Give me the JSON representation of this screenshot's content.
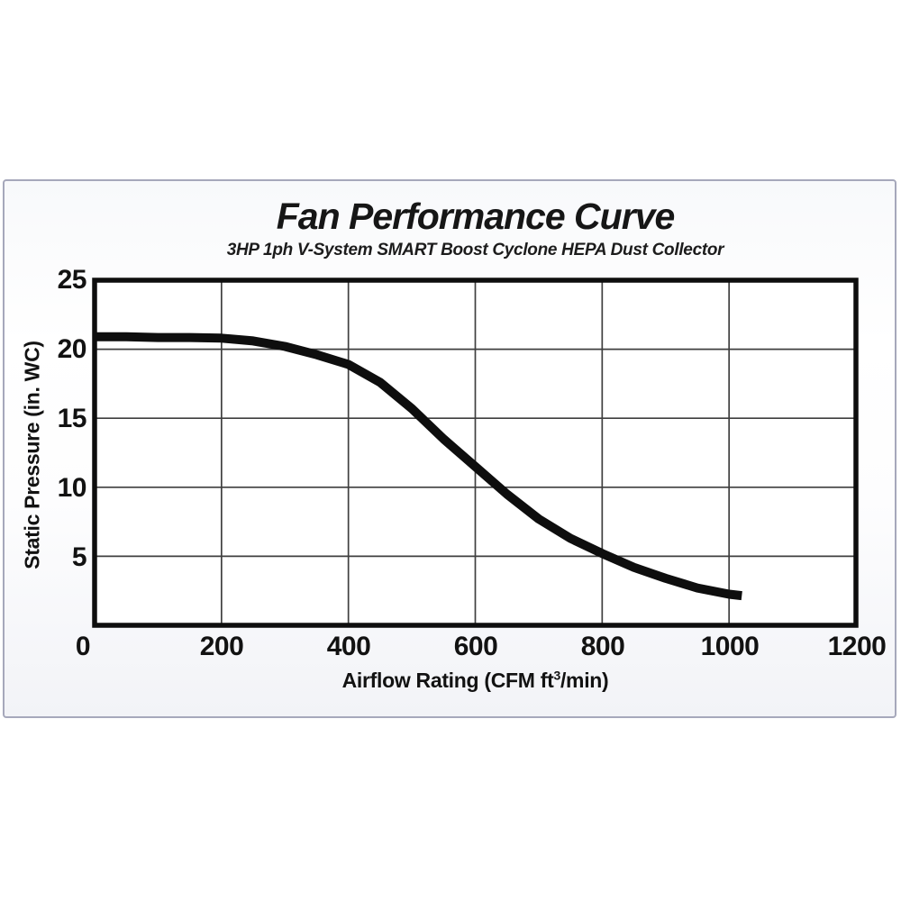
{
  "chart": {
    "title": "Fan Performance Curve",
    "subtitle": "3HP 1ph V-System SMART Boost Cyclone HEPA Dust Collector",
    "y_axis_label": "Static Pressure (in. WC)",
    "x_axis_label_prefix": "Airflow Rating (CFM ft",
    "x_axis_label_sup": "3",
    "x_axis_label_suffix": "/min)",
    "y_tick_labels": [
      "25",
      "20",
      "15",
      "10",
      "5"
    ],
    "x_tick_labels": [
      "0",
      "200",
      "400",
      "600",
      "800",
      "1000",
      "1200"
    ]
  },
  "chart_data": {
    "type": "line",
    "title": "Fan Performance Curve",
    "subtitle": "3HP 1ph V-System SMART Boost Cyclone HEPA Dust Collector",
    "xlabel": "Airflow Rating (CFM ft³/min)",
    "ylabel": "Static Pressure (in. WC)",
    "xlim": [
      0,
      1200
    ],
    "ylim": [
      0,
      25
    ],
    "x_ticks": [
      0,
      200,
      400,
      600,
      800,
      1000,
      1200
    ],
    "y_ticks": [
      0,
      5,
      10,
      15,
      20,
      25
    ],
    "grid": true,
    "legend": false,
    "line_color": "#0e0e0e",
    "frame_color": "#0e0e0e",
    "grid_color": "#3f3f3f",
    "plot_background": "#ffffff",
    "series_name": "Fan curve (static pressure vs airflow)",
    "points": [
      [
        0,
        20.9
      ],
      [
        50,
        20.9
      ],
      [
        100,
        20.85
      ],
      [
        150,
        20.85
      ],
      [
        200,
        20.8
      ],
      [
        250,
        20.6
      ],
      [
        300,
        20.2
      ],
      [
        350,
        19.6
      ],
      [
        400,
        18.9
      ],
      [
        450,
        17.6
      ],
      [
        500,
        15.7
      ],
      [
        550,
        13.5
      ],
      [
        600,
        11.5
      ],
      [
        650,
        9.5
      ],
      [
        700,
        7.7
      ],
      [
        750,
        6.3
      ],
      [
        800,
        5.2
      ],
      [
        850,
        4.2
      ],
      [
        900,
        3.4
      ],
      [
        950,
        2.7
      ],
      [
        1000,
        2.25
      ],
      [
        1020,
        2.15
      ]
    ]
  },
  "card": {
    "border_color": "#a6a8bb",
    "background_top": "#f8f9fb",
    "background_bottom": "#f2f3f7"
  }
}
